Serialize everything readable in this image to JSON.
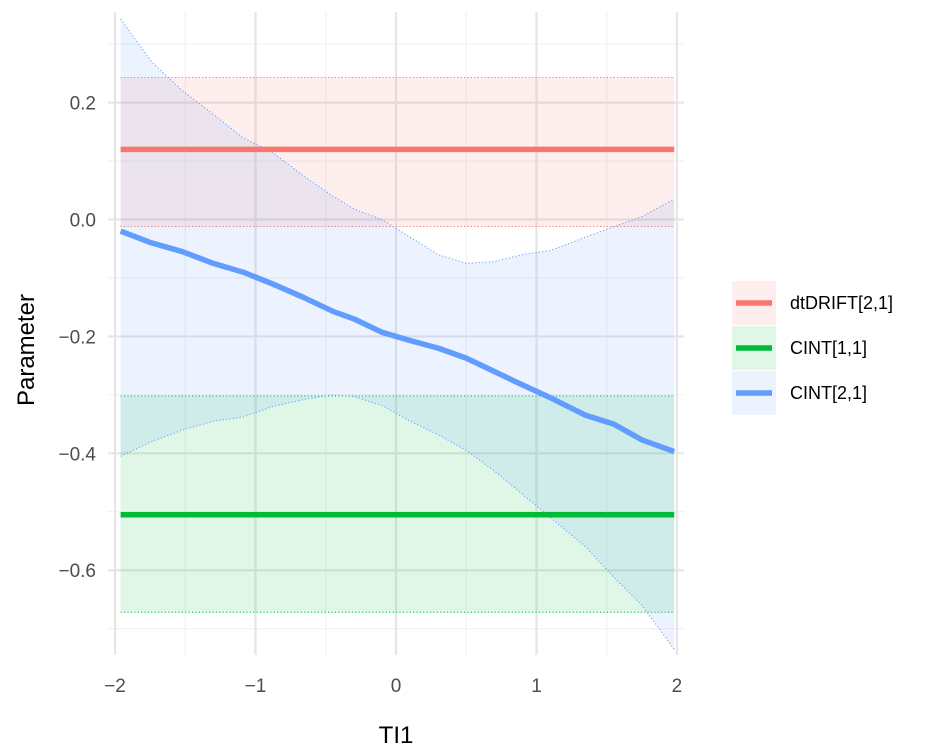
{
  "chart_data": {
    "type": "line",
    "xlabel": "TI1",
    "ylabel": "Parameter",
    "xlim": [
      -2.05,
      2.05
    ],
    "ylim": [
      -0.745,
      0.355
    ],
    "x_ticks": [
      -2,
      -1,
      0,
      1,
      2
    ],
    "x_tick_labels": [
      "−2",
      "−1",
      "0",
      "1",
      "2"
    ],
    "y_ticks": [
      -0.6,
      -0.4,
      -0.2,
      0.0,
      0.2
    ],
    "y_tick_labels": [
      "−0.6",
      "−0.4",
      "−0.2",
      "0.0",
      "0.2"
    ],
    "grid": true,
    "legend_position": "right",
    "series": [
      {
        "name": "dtDRIFT[2,1]",
        "color": "#F8766D",
        "x": [
          -1.96,
          1.98
        ],
        "y": [
          0.12,
          0.12
        ],
        "lower": [
          -0.012,
          -0.012
        ],
        "upper": [
          0.243,
          0.243
        ]
      },
      {
        "name": "CINT[1,1]",
        "color": "#00BA38",
        "x": [
          -1.96,
          1.98
        ],
        "y": [
          -0.505,
          -0.505
        ],
        "lower": [
          -0.672,
          -0.672
        ],
        "upper": [
          -0.302,
          -0.302
        ]
      },
      {
        "name": "CINT[2,1]",
        "color": "#619CFF",
        "x": [
          -1.96,
          -1.74,
          -1.52,
          -1.3,
          -1.09,
          -0.88,
          -0.66,
          -0.45,
          -0.3,
          -0.1,
          0.1,
          0.3,
          0.5,
          0.7,
          0.9,
          1.1,
          1.35,
          1.55,
          1.75,
          1.98
        ],
        "y": [
          -0.02,
          -0.04,
          -0.055,
          -0.075,
          -0.09,
          -0.11,
          -0.133,
          -0.157,
          -0.17,
          -0.193,
          -0.207,
          -0.22,
          -0.237,
          -0.26,
          -0.283,
          -0.305,
          -0.335,
          -0.35,
          -0.377,
          -0.397
        ],
        "lower": [
          -0.405,
          -0.38,
          -0.36,
          -0.345,
          -0.338,
          -0.32,
          -0.308,
          -0.3,
          -0.303,
          -0.318,
          -0.345,
          -0.368,
          -0.395,
          -0.43,
          -0.47,
          -0.51,
          -0.56,
          -0.612,
          -0.66,
          -0.735
        ],
        "upper": [
          0.343,
          0.27,
          0.22,
          0.18,
          0.14,
          0.115,
          0.075,
          0.04,
          0.018,
          0.0,
          -0.03,
          -0.06,
          -0.075,
          -0.072,
          -0.06,
          -0.053,
          -0.03,
          -0.012,
          0.005,
          0.035
        ]
      }
    ]
  }
}
